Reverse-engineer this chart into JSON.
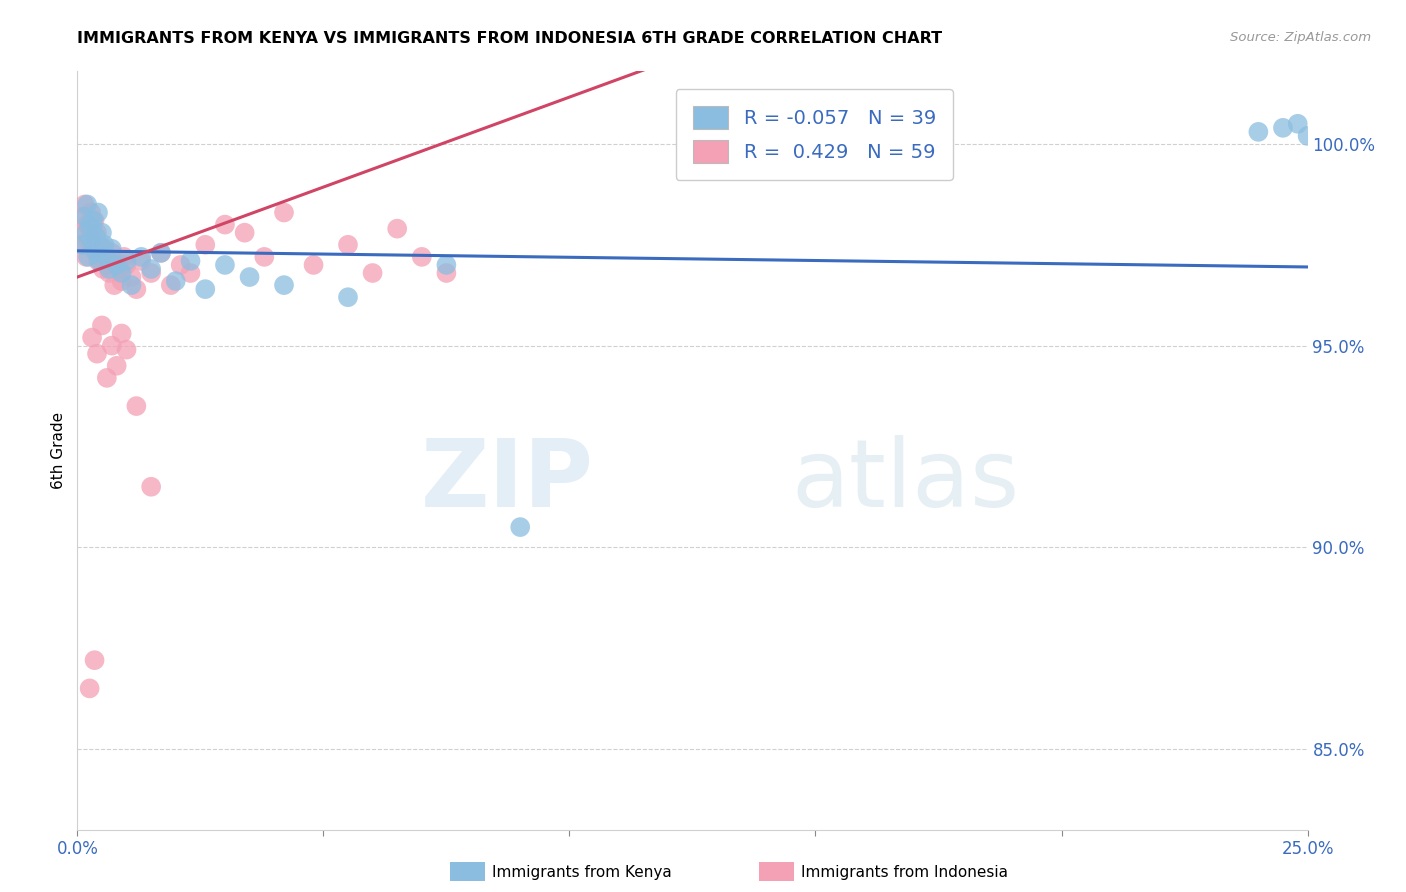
{
  "title": "IMMIGRANTS FROM KENYA VS IMMIGRANTS FROM INDONESIA 6TH GRADE CORRELATION CHART",
  "source": "Source: ZipAtlas.com",
  "ylabel": "6th Grade",
  "xmin": 0.0,
  "xmax": 25.0,
  "ymin": 83.0,
  "ymax": 101.8,
  "R_kenya": -0.057,
  "N_kenya": 39,
  "R_indonesia": 0.429,
  "N_indonesia": 59,
  "kenya_color": "#8bbde0",
  "indonesia_color": "#f4a0b5",
  "kenya_line_color": "#3a6bbf",
  "indonesia_line_color": "#d04565",
  "kenya_line_x0": 0.0,
  "kenya_line_y0": 97.35,
  "kenya_line_x1": 25.0,
  "kenya_line_y1": 96.95,
  "indonesia_line_x0": 0.0,
  "indonesia_line_y0": 96.7,
  "indonesia_line_x1": 6.5,
  "indonesia_line_y1": 99.6,
  "kenya_x": [
    0.1,
    0.15,
    0.18,
    0.2,
    0.22,
    0.25,
    0.28,
    0.3,
    0.32,
    0.35,
    0.38,
    0.4,
    0.42,
    0.45,
    0.5,
    0.55,
    0.6,
    0.65,
    0.7,
    0.8,
    0.9,
    1.0,
    1.1,
    1.3,
    1.5,
    1.7,
    2.0,
    2.3,
    2.6,
    3.0,
    3.5,
    4.2,
    5.5,
    7.5,
    9.0,
    24.0,
    24.5,
    24.8,
    25.0
  ],
  "kenya_y": [
    97.5,
    98.2,
    97.8,
    98.5,
    97.2,
    98.0,
    97.6,
    97.9,
    98.1,
    97.4,
    97.7,
    97.3,
    98.3,
    97.1,
    97.8,
    97.5,
    97.2,
    96.9,
    97.4,
    97.0,
    96.8,
    97.1,
    96.5,
    97.2,
    96.9,
    97.3,
    96.6,
    97.1,
    96.4,
    97.0,
    96.7,
    96.5,
    96.2,
    97.0,
    90.5,
    100.3,
    100.4,
    100.5,
    100.2
  ],
  "indonesia_x": [
    0.08,
    0.1,
    0.12,
    0.15,
    0.18,
    0.2,
    0.22,
    0.25,
    0.28,
    0.3,
    0.32,
    0.35,
    0.38,
    0.4,
    0.42,
    0.45,
    0.5,
    0.52,
    0.55,
    0.6,
    0.65,
    0.7,
    0.75,
    0.8,
    0.85,
    0.9,
    0.95,
    1.0,
    1.1,
    1.2,
    1.3,
    1.5,
    1.7,
    1.9,
    2.1,
    2.3,
    2.6,
    3.0,
    3.4,
    3.8,
    4.2,
    4.8,
    5.5,
    6.0,
    6.5,
    0.3,
    0.4,
    0.5,
    0.6,
    0.7,
    0.8,
    0.9,
    1.0,
    1.2,
    7.0,
    7.5,
    0.25,
    0.35,
    1.5
  ],
  "indonesia_y": [
    97.8,
    98.2,
    97.5,
    98.5,
    97.2,
    98.0,
    97.6,
    97.9,
    98.3,
    97.7,
    97.4,
    98.1,
    97.3,
    97.8,
    97.1,
    97.5,
    97.2,
    96.9,
    97.4,
    97.0,
    96.8,
    97.3,
    96.5,
    97.1,
    96.9,
    96.6,
    97.2,
    97.0,
    96.7,
    96.4,
    97.1,
    96.8,
    97.3,
    96.5,
    97.0,
    96.8,
    97.5,
    98.0,
    97.8,
    97.2,
    98.3,
    97.0,
    97.5,
    96.8,
    97.9,
    95.2,
    94.8,
    95.5,
    94.2,
    95.0,
    94.5,
    95.3,
    94.9,
    93.5,
    97.2,
    96.8,
    86.5,
    87.2,
    91.5
  ]
}
